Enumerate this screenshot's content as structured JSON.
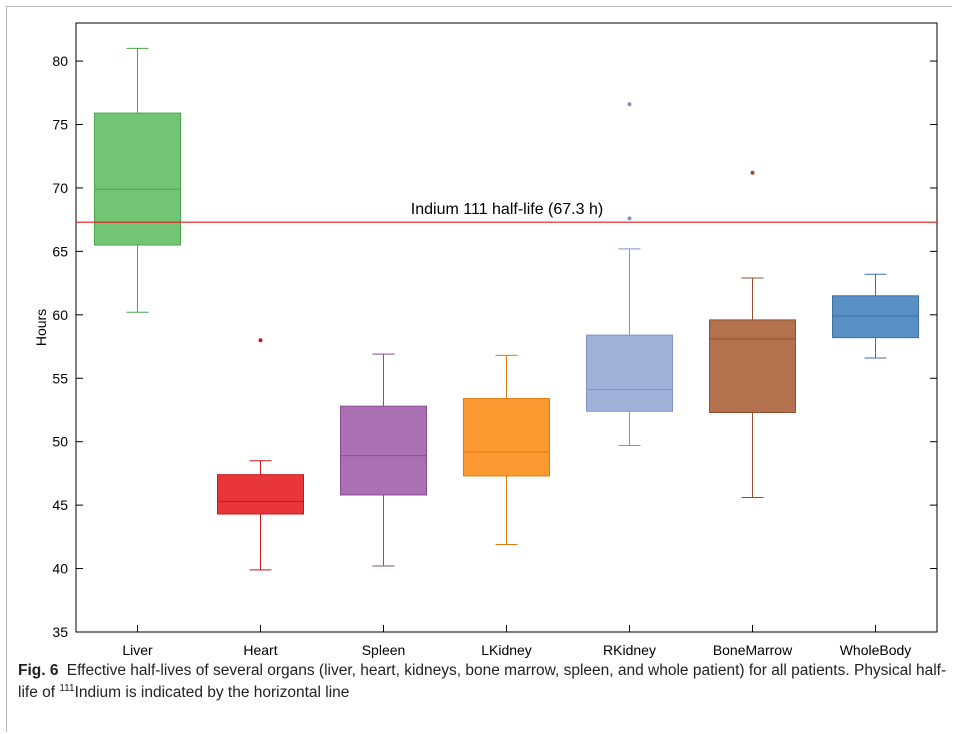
{
  "chart_data": {
    "type": "box",
    "ylabel": "Hours",
    "ylim": [
      35,
      83
    ],
    "yticks": [
      35,
      40,
      45,
      50,
      55,
      60,
      65,
      70,
      75,
      80
    ],
    "categories": [
      "Liver",
      "Heart",
      "Spleen",
      "LKidney",
      "RKidney",
      "BoneMarrow",
      "WholeBody"
    ],
    "boxes": [
      {
        "name": "Liver",
        "whisker_low": 60.2,
        "q1": 65.5,
        "median": 69.9,
        "q3": 75.9,
        "whisker_high": 81.0,
        "outliers": [],
        "fill": "#74c476",
        "stroke": "#4aa64d"
      },
      {
        "name": "Heart",
        "whisker_low": 39.9,
        "q1": 44.3,
        "median": 45.3,
        "q3": 47.4,
        "whisker_high": 48.5,
        "outliers": [
          58.0
        ],
        "fill": "#e8363b",
        "stroke": "#c8171c"
      },
      {
        "name": "Spleen",
        "whisker_low": 40.2,
        "q1": 45.8,
        "median": 48.9,
        "q3": 52.8,
        "whisker_high": 56.9,
        "outliers": [],
        "fill": "#ab6fb3",
        "stroke": "#8a4b93"
      },
      {
        "name": "LKidney",
        "whisker_low": 41.9,
        "q1": 47.3,
        "median": 49.2,
        "q3": 53.4,
        "whisker_high": 56.8,
        "outliers": [],
        "fill": "#fd9931",
        "stroke": "#e07a10"
      },
      {
        "name": "RKidney",
        "whisker_low": 49.7,
        "q1": 52.4,
        "median": 54.1,
        "q3": 58.4,
        "whisker_high": 65.2,
        "outliers": [
          67.6,
          76.6
        ],
        "fill": "#a1b2d8",
        "stroke": "#7f93c4"
      },
      {
        "name": "BoneMarrow",
        "whisker_low": 45.6,
        "q1": 52.3,
        "median": 58.1,
        "q3": 59.6,
        "whisker_high": 62.9,
        "outliers": [
          71.2
        ],
        "fill": "#b3724d",
        "stroke": "#934f2b"
      },
      {
        "name": "WholeBody",
        "whisker_low": 56.6,
        "q1": 58.2,
        "median": 59.9,
        "q3": 61.5,
        "whisker_high": 63.2,
        "outliers": [],
        "fill": "#5a8fc5",
        "stroke": "#3a72aa"
      }
    ],
    "reference_line": {
      "value": 67.3,
      "label": "Indium 111 half-life (67.3 h)",
      "color": "#e01b1b"
    },
    "grid": false
  },
  "caption": {
    "label": "Fig. 6",
    "text_before": "Effective half-lives of several organs (liver, heart, kidneys, bone marrow, spleen, and whole patient) for all patients. Physical half-life of ",
    "superscript": "111",
    "text_after": "Indium is indicated by the horizontal line"
  }
}
